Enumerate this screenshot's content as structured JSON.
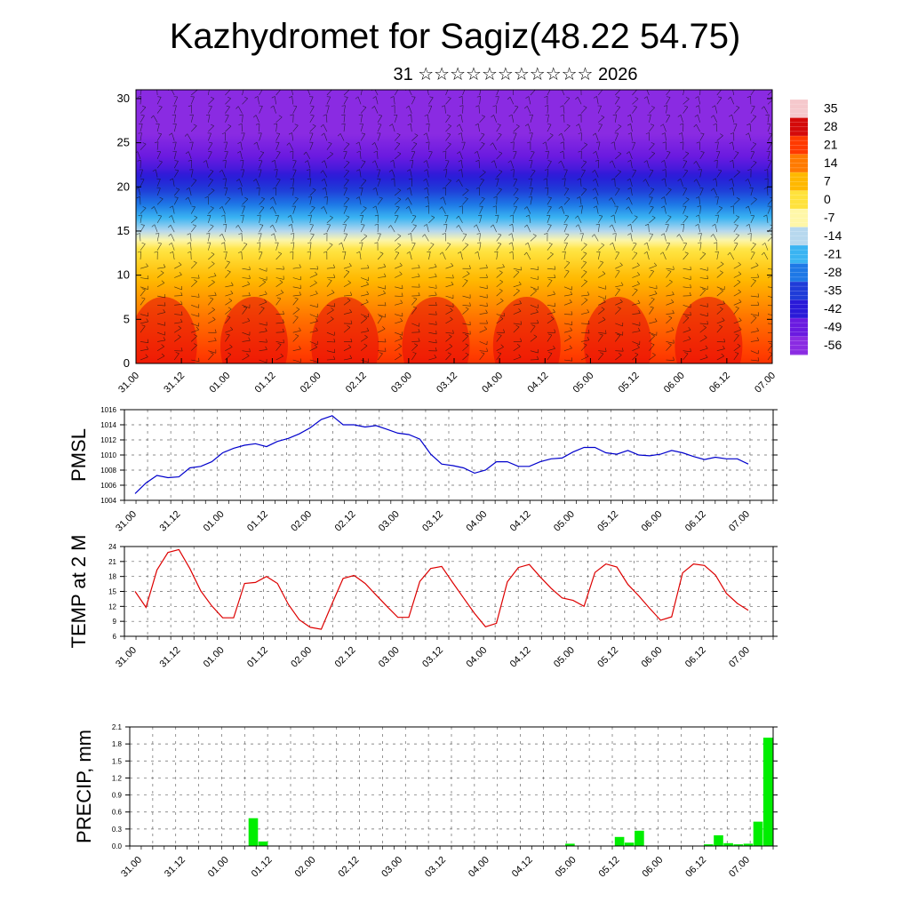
{
  "title": "Kazhydromet for Sagiz(48.22 54.75)",
  "subtitle": "31 ☆☆☆☆☆☆☆☆☆☆☆ 2026",
  "chart_data": [
    {
      "type": "heatmap",
      "name": "vertical temperature and wind cross-section",
      "x_tick_labels": [
        "31.00",
        "31.12",
        "01.00",
        "01.12",
        "02.00",
        "02.12",
        "03.00",
        "03.12",
        "04.00",
        "04.12",
        "05.00",
        "05.12",
        "06.00",
        "06.12",
        "07.00"
      ],
      "y_tick_labels": [
        "0",
        "5",
        "10",
        "15",
        "20",
        "25",
        "30"
      ],
      "ylim": [
        0,
        31
      ],
      "colorbar_labels": [
        "35",
        "28",
        "21",
        "14",
        "7",
        "0",
        "-7",
        "-14",
        "-21",
        "-28",
        "-35",
        "-42",
        "-49",
        "-56"
      ],
      "colorbar_colors": [
        "#f5c8cc",
        "#d40a0a",
        "#ff3a00",
        "#ff7a00",
        "#ffb800",
        "#ffe23c",
        "#fff7a8",
        "#b7d8ee",
        "#3ab4f2",
        "#1e78e6",
        "#1f3cd8",
        "#2a1ad8",
        "#6a1ae0",
        "#8a2be2"
      ],
      "level_temperature": [
        {
          "level": 0,
          "temp": 22
        },
        {
          "level": 5,
          "temp": 15
        },
        {
          "level": 10,
          "temp": 6
        },
        {
          "level": 13,
          "temp": -1
        },
        {
          "level": 15,
          "temp": -14
        },
        {
          "level": 18,
          "temp": -28
        },
        {
          "level": 22,
          "temp": -45
        },
        {
          "level": 26,
          "temp": -56
        },
        {
          "level": 31,
          "temp": -58
        }
      ]
    },
    {
      "type": "line",
      "ylabel": "PMSL",
      "color": "#0000cc",
      "ylim": [
        1004,
        1016
      ],
      "y_tick_labels": [
        "1016",
        "1014",
        "1012",
        "1010",
        "1008",
        "1006",
        "1004"
      ],
      "x_tick_labels": [
        "31.00",
        "31.12",
        "01.00",
        "01.12",
        "02.00",
        "02.12",
        "03.00",
        "03.12",
        "04.00",
        "04.12",
        "05.00",
        "05.12",
        "06.00",
        "06.12",
        "07.00"
      ],
      "values": [
        1004.9,
        1006.3,
        1007.3,
        1007.0,
        1007.1,
        1008.3,
        1008.5,
        1009.1,
        1010.3,
        1010.9,
        1011.3,
        1011.5,
        1011.1,
        1011.8,
        1012.2,
        1012.8,
        1013.6,
        1014.7,
        1015.2,
        1014.0,
        1014.0,
        1013.7,
        1013.9,
        1013.4,
        1012.9,
        1012.7,
        1012.1,
        1010.1,
        1008.8,
        1008.6,
        1008.3,
        1007.6,
        1008.0,
        1009.1,
        1009.1,
        1008.5,
        1008.5,
        1009.1,
        1009.5,
        1009.6,
        1010.4,
        1011.0,
        1011.0,
        1010.3,
        1010.1,
        1010.6,
        1010.0,
        1009.9,
        1010.1,
        1010.6,
        1010.3,
        1009.8,
        1009.4,
        1009.7,
        1009.5,
        1009.5,
        1008.8
      ]
    },
    {
      "type": "line",
      "ylabel": "TEMP at 2 M",
      "color": "#dd0000",
      "ylim": [
        6,
        24
      ],
      "y_tick_labels": [
        "24",
        "21",
        "18",
        "15",
        "12",
        "9",
        "6"
      ],
      "x_tick_labels": [
        "31.00",
        "31.12",
        "01.00",
        "01.12",
        "02.00",
        "02.12",
        "03.00",
        "03.12",
        "04.00",
        "04.12",
        "05.00",
        "05.12",
        "06.00",
        "06.12",
        "07.00"
      ],
      "values": [
        15.0,
        11.8,
        19.3,
        22.8,
        23.4,
        19.6,
        15.1,
        12.1,
        9.7,
        9.7,
        16.6,
        16.8,
        18.0,
        16.6,
        12.4,
        9.3,
        7.8,
        7.4,
        12.6,
        17.6,
        18.2,
        16.6,
        14.3,
        12.0,
        9.8,
        9.8,
        17.0,
        19.6,
        20.0,
        16.8,
        13.7,
        10.6,
        7.9,
        8.6,
        16.9,
        19.8,
        20.4,
        17.9,
        15.6,
        13.7,
        13.2,
        12.0,
        18.8,
        20.5,
        19.9,
        16.4,
        14.1,
        11.6,
        9.2,
        9.9,
        18.7,
        20.5,
        20.2,
        18.3,
        14.6,
        12.6,
        11.2
      ]
    },
    {
      "type": "bar",
      "ylabel": "PRECIP, mm",
      "color": "#00ee00",
      "ylim": [
        0,
        2.1
      ],
      "y_tick_labels": [
        "2.1",
        "1.8",
        "1.5",
        "1.2",
        "0.9",
        "0.6",
        "0.3",
        "0.0"
      ],
      "x_tick_labels": [
        "31.00",
        "31.12",
        "01.00",
        "01.12",
        "02.00",
        "02.12",
        "03.00",
        "03.12",
        "04.00",
        "04.12",
        "05.00",
        "05.12",
        "06.00",
        "06.12",
        "07.00"
      ],
      "values": [
        0,
        0,
        0,
        0,
        0,
        0,
        0,
        0,
        0,
        0,
        0,
        0,
        0.49,
        0.08,
        0,
        0,
        0,
        0,
        0,
        0,
        0,
        0,
        0,
        0,
        0,
        0,
        0,
        0,
        0,
        0,
        0,
        0,
        0,
        0,
        0,
        0,
        0,
        0,
        0,
        0,
        0,
        0,
        0,
        0,
        0.04,
        0,
        0,
        0,
        0,
        0.16,
        0.06,
        0.27,
        0,
        0,
        0,
        0,
        0,
        0,
        0.03,
        0.19,
        0.05,
        0.03,
        0.04,
        0.43,
        1.91
      ]
    }
  ]
}
